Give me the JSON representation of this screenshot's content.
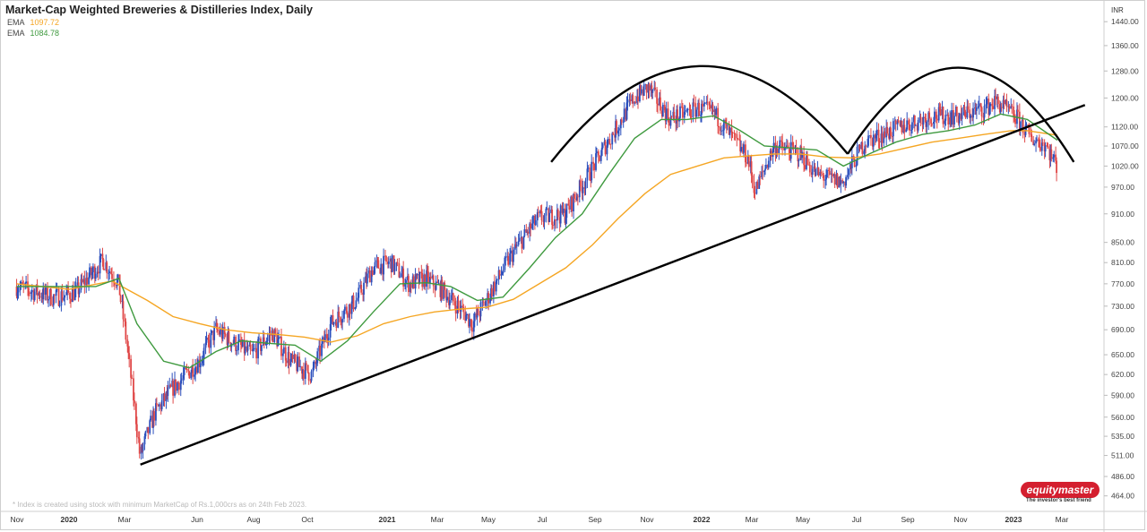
{
  "header": {
    "title": "Market-Cap Weighted Breweries & Distilleries Index, Daily",
    "ema_fast_label": "EMA",
    "ema_fast_value": "1097.72",
    "ema_slow_label": "EMA",
    "ema_slow_value": "1084.78"
  },
  "footnote": "* Index is created using stock with minimum MarketCap of Rs.1,000crs as on 24th Feb 2023.",
  "logo": {
    "text": "equitymaster",
    "tagline": "The investor's best friend"
  },
  "colors": {
    "up": "#2b4fbd",
    "down": "#e04848",
    "ema_fast": "#f5a623",
    "ema_slow": "#3f9a3f",
    "pattern": "#000000"
  },
  "chart_data": {
    "type": "line",
    "currency": "INR",
    "y_tick_labels": [
      "1440.00",
      "1360.00",
      "1280.00",
      "1200.00",
      "1120.00",
      "1070.00",
      "1020.00",
      "970.00",
      "910.00",
      "850.00",
      "810.00",
      "770.00",
      "730.00",
      "690.00",
      "650.00",
      "620.00",
      "590.00",
      "560.00",
      "535.00",
      "511.00",
      "486.00",
      "464.00"
    ],
    "x_tick_labels": [
      {
        "label": "Nov",
        "bold": false
      },
      {
        "label": "2020",
        "bold": true
      },
      {
        "label": "Mar",
        "bold": false
      },
      {
        "label": "Jun",
        "bold": false
      },
      {
        "label": "Aug",
        "bold": false
      },
      {
        "label": "Oct",
        "bold": false
      },
      {
        "label": "2021",
        "bold": true
      },
      {
        "label": "Mar",
        "bold": false
      },
      {
        "label": "May",
        "bold": false
      },
      {
        "label": "Jul",
        "bold": false
      },
      {
        "label": "Sep",
        "bold": false
      },
      {
        "label": "Nov",
        "bold": false
      },
      {
        "label": "2022",
        "bold": true
      },
      {
        "label": "Mar",
        "bold": false
      },
      {
        "label": "May",
        "bold": false
      },
      {
        "label": "Jul",
        "bold": false
      },
      {
        "label": "Sep",
        "bold": false
      },
      {
        "label": "Nov",
        "bold": false
      },
      {
        "label": "2023",
        "bold": true
      },
      {
        "label": "Mar",
        "bold": false
      }
    ],
    "price_path": [
      [
        "2019-11-01",
        765
      ],
      [
        "2019-12-15",
        745
      ],
      [
        "2020-01-10",
        755
      ],
      [
        "2020-02-10",
        815
      ],
      [
        "2020-02-28",
        770
      ],
      [
        "2020-03-15",
        600
      ],
      [
        "2020-03-24",
        510
      ],
      [
        "2020-04-10",
        565
      ],
      [
        "2020-05-01",
        600
      ],
      [
        "2020-06-01",
        640
      ],
      [
        "2020-06-20",
        690
      ],
      [
        "2020-07-10",
        670
      ],
      [
        "2020-08-01",
        650
      ],
      [
        "2020-08-25",
        685
      ],
      [
        "2020-09-15",
        640
      ],
      [
        "2020-10-10",
        620
      ],
      [
        "2020-11-01",
        700
      ],
      [
        "2020-12-01",
        740
      ],
      [
        "2020-12-20",
        800
      ],
      [
        "2021-01-10",
        810
      ],
      [
        "2021-01-31",
        770
      ],
      [
        "2021-02-20",
        780
      ],
      [
        "2021-03-10",
        760
      ],
      [
        "2021-04-01",
        725
      ],
      [
        "2021-04-15",
        700
      ],
      [
        "2021-05-01",
        740
      ],
      [
        "2021-06-01",
        830
      ],
      [
        "2021-06-30",
        900
      ],
      [
        "2021-08-01",
        910
      ],
      [
        "2021-08-31",
        1010
      ],
      [
        "2021-09-30",
        1120
      ],
      [
        "2021-10-20",
        1200
      ],
      [
        "2021-11-05",
        1230
      ],
      [
        "2021-12-01",
        1140
      ],
      [
        "2022-01-01",
        1170
      ],
      [
        "2022-01-20",
        1160
      ],
      [
        "2022-02-15",
        1080
      ],
      [
        "2022-03-01",
        1040
      ],
      [
        "2022-03-10",
        960
      ],
      [
        "2022-04-01",
        1070
      ],
      [
        "2022-05-01",
        1050
      ],
      [
        "2022-05-20",
        1000
      ],
      [
        "2022-06-20",
        980
      ],
      [
        "2022-07-15",
        1080
      ],
      [
        "2022-08-15",
        1110
      ],
      [
        "2022-10-01",
        1150
      ],
      [
        "2022-11-01",
        1150
      ],
      [
        "2022-12-01",
        1170
      ],
      [
        "2022-12-15",
        1190
      ],
      [
        "2023-01-10",
        1140
      ],
      [
        "2023-01-25",
        1090
      ],
      [
        "2023-02-10",
        1075
      ],
      [
        "2023-02-24",
        1020
      ]
    ],
    "ema_slow_path": [
      [
        "2019-11-01",
        765
      ],
      [
        "2020-02-01",
        765
      ],
      [
        "2020-02-28",
        780
      ],
      [
        "2020-03-20",
        700
      ],
      [
        "2020-04-20",
        640
      ],
      [
        "2020-05-20",
        630
      ],
      [
        "2020-06-20",
        655
      ],
      [
        "2020-07-20",
        672
      ],
      [
        "2020-08-20",
        668
      ],
      [
        "2020-09-20",
        665
      ],
      [
        "2020-10-20",
        640
      ],
      [
        "2020-11-20",
        672
      ],
      [
        "2020-12-20",
        720
      ],
      [
        "2021-01-20",
        770
      ],
      [
        "2021-02-20",
        772
      ],
      [
        "2021-03-20",
        765
      ],
      [
        "2021-04-20",
        740
      ],
      [
        "2021-05-20",
        746
      ],
      [
        "2021-06-20",
        800
      ],
      [
        "2021-07-20",
        860
      ],
      [
        "2021-08-20",
        910
      ],
      [
        "2021-09-20",
        1000
      ],
      [
        "2021-10-20",
        1090
      ],
      [
        "2021-11-20",
        1140
      ],
      [
        "2021-12-20",
        1140
      ],
      [
        "2022-01-20",
        1150
      ],
      [
        "2022-02-20",
        1110
      ],
      [
        "2022-03-20",
        1070
      ],
      [
        "2022-04-20",
        1065
      ],
      [
        "2022-05-20",
        1060
      ],
      [
        "2022-06-20",
        1020
      ],
      [
        "2022-07-20",
        1050
      ],
      [
        "2022-08-20",
        1080
      ],
      [
        "2022-09-20",
        1100
      ],
      [
        "2022-10-20",
        1110
      ],
      [
        "2022-11-20",
        1125
      ],
      [
        "2022-12-20",
        1155
      ],
      [
        "2023-01-20",
        1140
      ],
      [
        "2023-02-24",
        1085
      ]
    ],
    "ema_fast_path": [
      [
        "2019-11-01",
        770
      ],
      [
        "2020-01-01",
        760
      ],
      [
        "2020-02-20",
        775
      ],
      [
        "2020-04-01",
        740
      ],
      [
        "2020-05-01",
        712
      ],
      [
        "2020-06-01",
        700
      ],
      [
        "2020-07-01",
        690
      ],
      [
        "2020-08-01",
        685
      ],
      [
        "2020-09-01",
        682
      ],
      [
        "2020-10-01",
        678
      ],
      [
        "2020-11-01",
        670
      ],
      [
        "2020-12-01",
        680
      ],
      [
        "2021-01-01",
        700
      ],
      [
        "2021-02-01",
        712
      ],
      [
        "2021-03-01",
        720
      ],
      [
        "2021-04-01",
        725
      ],
      [
        "2021-05-01",
        728
      ],
      [
        "2021-06-01",
        742
      ],
      [
        "2021-07-01",
        770
      ],
      [
        "2021-08-01",
        800
      ],
      [
        "2021-09-01",
        845
      ],
      [
        "2021-10-01",
        900
      ],
      [
        "2021-11-01",
        955
      ],
      [
        "2021-12-01",
        1000
      ],
      [
        "2022-01-01",
        1020
      ],
      [
        "2022-02-01",
        1040
      ],
      [
        "2022-03-01",
        1045
      ],
      [
        "2022-04-01",
        1050
      ],
      [
        "2022-05-01",
        1050
      ],
      [
        "2022-06-01",
        1042
      ],
      [
        "2022-07-01",
        1040
      ],
      [
        "2022-08-01",
        1050
      ],
      [
        "2022-09-01",
        1065
      ],
      [
        "2022-10-01",
        1080
      ],
      [
        "2022-11-01",
        1090
      ],
      [
        "2022-12-01",
        1100
      ],
      [
        "2023-01-01",
        1110
      ],
      [
        "2023-01-20",
        1110
      ],
      [
        "2023-02-24",
        1098
      ]
    ],
    "trendline": [
      [
        "2020-03-24",
        500
      ],
      [
        "2023-03-28",
        1180
      ]
    ],
    "arcs": [
      {
        "start": [
          "2021-07-15",
          1030
        ],
        "end": [
          "2022-06-25",
          1050
        ],
        "top": 1295
      },
      {
        "start": [
          "2022-06-25",
          1050
        ],
        "end": [
          "2023-03-15",
          1030
        ],
        "top": 1290
      }
    ],
    "y_scale": "log",
    "y_range": [
      450,
      1510
    ],
    "x_range": [
      "2019-10-21",
      "2023-04-15"
    ],
    "grid": false,
    "legend_position": "top-left"
  }
}
